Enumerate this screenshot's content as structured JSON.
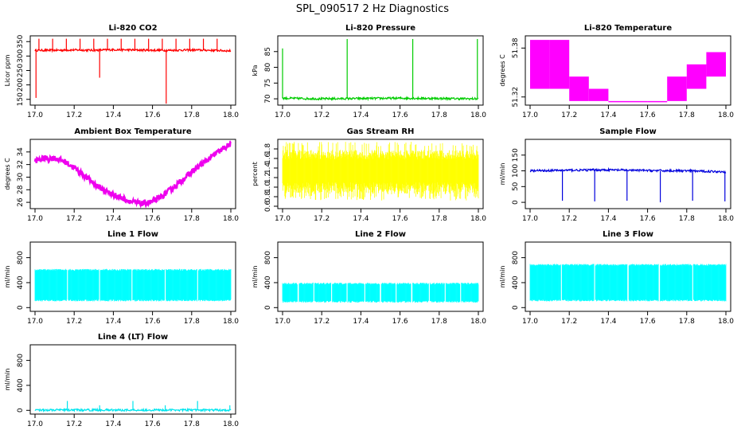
{
  "figure": {
    "title": "SPL_090517  2 Hz Diagnostics"
  },
  "chart_data": [
    {
      "type": "line",
      "title": "Li-820 CO2",
      "ylabel": "Licor ppm",
      "xlim": [
        17.0,
        18.0
      ],
      "ylim": [
        130,
        370
      ],
      "xticks": [
        "17.0",
        "17.2",
        "17.4",
        "17.6",
        "17.8",
        "18.0"
      ],
      "yticks": [
        150,
        200,
        250,
        300,
        350
      ],
      "ytick_labels": [
        "150",
        "200",
        "250",
        "300",
        "350"
      ],
      "color": "#ff0000",
      "x": [
        17.0,
        17.1,
        17.2,
        17.3,
        17.4,
        17.5,
        17.6,
        17.7,
        17.8,
        17.9,
        18.0
      ],
      "y": [
        320,
        320,
        321,
        320,
        322,
        321,
        320,
        320,
        321,
        320,
        318
      ],
      "spikes_down": [
        {
          "x": 17.005,
          "y": 155
        },
        {
          "x": 17.33,
          "y": 225
        },
        {
          "x": 17.67,
          "y": 135
        }
      ]
    },
    {
      "type": "line",
      "title": "Li-820 Pressure",
      "ylabel": "kPa",
      "xlim": [
        17.0,
        18.0
      ],
      "ylim": [
        68,
        90
      ],
      "xticks": [
        "17.0",
        "17.2",
        "17.4",
        "17.6",
        "17.8",
        "18.0"
      ],
      "yticks": [
        70,
        75,
        80,
        85
      ],
      "ytick_labels": [
        "70",
        "75",
        "80",
        "85"
      ],
      "color": "#00cc00",
      "x": [
        17.0,
        17.2,
        17.4,
        17.6,
        17.8,
        18.0
      ],
      "y": [
        70.2,
        70.0,
        70.1,
        70.2,
        70.1,
        70.0
      ],
      "spikes_up": [
        {
          "x": 17.0,
          "y": 86
        },
        {
          "x": 17.33,
          "y": 89
        },
        {
          "x": 17.665,
          "y": 89
        },
        {
          "x": 17.995,
          "y": 89
        }
      ]
    },
    {
      "type": "line",
      "title": "Li-820 Temperature",
      "ylabel": "degrees C",
      "xlim": [
        17.0,
        18.0
      ],
      "ylim": [
        51.31,
        51.395
      ],
      "xticks": [
        "17.0",
        "17.2",
        "17.4",
        "17.6",
        "17.8",
        "18.0"
      ],
      "yticks": [
        51.32,
        51.38
      ],
      "ytick_labels": [
        "51.32",
        "51.38"
      ],
      "color": "#ff00ff",
      "x": [
        17.0,
        17.1,
        17.2,
        17.3,
        17.4,
        17.5,
        17.6,
        17.7,
        17.8,
        17.9,
        18.0
      ],
      "y_low": [
        51.33,
        51.33,
        51.315,
        51.315,
        51.315,
        51.315,
        51.315,
        51.315,
        51.33,
        51.345,
        51.36
      ],
      "y_high": [
        51.39,
        51.39,
        51.345,
        51.33,
        51.315,
        51.315,
        51.315,
        51.345,
        51.36,
        51.375,
        51.39
      ]
    },
    {
      "type": "line",
      "title": "Ambient Box Temperature",
      "ylabel": "degrees C",
      "xlim": [
        17.0,
        18.0
      ],
      "ylim": [
        25,
        36
      ],
      "xticks": [
        "17.0",
        "17.2",
        "17.4",
        "17.6",
        "17.8",
        "18.0"
      ],
      "yticks": [
        26,
        28,
        30,
        32,
        34
      ],
      "ytick_labels": [
        "26",
        "28",
        "30",
        "32",
        "34"
      ],
      "color": "#ee00ee",
      "x": [
        17.0,
        17.05,
        17.1,
        17.15,
        17.2,
        17.25,
        17.3,
        17.35,
        17.4,
        17.45,
        17.5,
        17.55,
        17.6,
        17.65,
        17.7,
        17.75,
        17.8,
        17.85,
        17.9,
        17.95,
        18.0
      ],
      "y": [
        32.6,
        33.0,
        33.0,
        32.5,
        31.5,
        30.3,
        29.0,
        28.0,
        27.2,
        26.6,
        26.0,
        25.8,
        26.1,
        27.0,
        28.2,
        29.5,
        30.8,
        32.0,
        33.2,
        34.3,
        35.3
      ]
    },
    {
      "type": "line",
      "title": "Gas Stream RH",
      "ylabel": "percent",
      "xlim": [
        17.0,
        18.0
      ],
      "ylim": [
        0.55,
        2.0
      ],
      "xticks": [
        "17.0",
        "17.2",
        "17.4",
        "17.6",
        "17.8",
        "18.0"
      ],
      "yticks": [
        0.6,
        0.8,
        1.0,
        1.2,
        1.4,
        1.6,
        1.8
      ],
      "ytick_labels": [
        "0.6",
        "0.8",
        "1.0",
        "1.2",
        "1.4",
        "1.6",
        "1.8"
      ],
      "color": "#ffff00",
      "band_low": 0.85,
      "band_high": 1.78,
      "extreme_low": 0.72,
      "extreme_high": 1.95
    },
    {
      "type": "line",
      "title": "Sample Flow",
      "ylabel": "ml/min",
      "xlim": [
        17.0,
        18.0
      ],
      "ylim": [
        -20,
        200
      ],
      "xticks": [
        "17.0",
        "17.2",
        "17.4",
        "17.6",
        "17.8",
        "18.0"
      ],
      "yticks": [
        0,
        50,
        100,
        150
      ],
      "ytick_labels": [
        "0",
        "50",
        "100",
        "150"
      ],
      "color": "#0000dd",
      "x": [
        17.0,
        17.2,
        17.4,
        17.6,
        17.8,
        18.0
      ],
      "y": [
        100,
        102,
        103,
        101,
        100,
        97
      ],
      "spikes_down": [
        {
          "x": 17.165,
          "y": 5
        },
        {
          "x": 17.33,
          "y": 3
        },
        {
          "x": 17.495,
          "y": 5
        },
        {
          "x": 17.665,
          "y": 0
        },
        {
          "x": 17.83,
          "y": 5
        },
        {
          "x": 17.995,
          "y": 3
        }
      ]
    },
    {
      "type": "area",
      "title": "Line 1 Flow",
      "ylabel": "ml/min",
      "xlim": [
        17.0,
        18.0
      ],
      "ylim": [
        -60,
        1050
      ],
      "xticks": [
        "17.0",
        "17.2",
        "17.4",
        "17.6",
        "17.8",
        "18.0"
      ],
      "yticks": [
        0,
        400,
        800
      ],
      "ytick_labels": [
        "0",
        "400",
        "800"
      ],
      "color": "#00ffff",
      "band_low": 100,
      "band_high": 620,
      "gaps": [
        17.165,
        17.33,
        17.495,
        17.665,
        17.83
      ]
    },
    {
      "type": "area",
      "title": "Line 2 Flow",
      "ylabel": "ml/min",
      "xlim": [
        17.0,
        18.0
      ],
      "ylim": [
        -60,
        1050
      ],
      "xticks": [
        "17.0",
        "17.2",
        "17.4",
        "17.6",
        "17.8",
        "18.0"
      ],
      "yticks": [
        0,
        400,
        800
      ],
      "ytick_labels": [
        "0",
        "400",
        "800"
      ],
      "color": "#00ffff",
      "band_low": 80,
      "band_high": 400,
      "gaps": [
        17.08,
        17.16,
        17.25,
        17.33,
        17.42,
        17.5,
        17.58,
        17.66,
        17.75,
        17.83,
        17.91
      ]
    },
    {
      "type": "area",
      "title": "Line 3 Flow",
      "ylabel": "ml/min",
      "xlim": [
        17.0,
        18.0
      ],
      "ylim": [
        -60,
        1050
      ],
      "xticks": [
        "17.0",
        "17.2",
        "17.4",
        "17.6",
        "17.8",
        "18.0"
      ],
      "yticks": [
        0,
        400,
        800
      ],
      "ytick_labels": [
        "0",
        "400",
        "800"
      ],
      "color": "#00ffff",
      "band_low": 100,
      "band_high": 700,
      "gaps": [
        17.16,
        17.33,
        17.5,
        17.66,
        17.83
      ]
    },
    {
      "type": "line",
      "title": "Line 4 (LT) Flow",
      "ylabel": "ml/min",
      "xlim": [
        17.0,
        18.0
      ],
      "ylim": [
        -60,
        1050
      ],
      "xticks": [
        "17.0",
        "17.2",
        "17.4",
        "17.6",
        "17.8",
        "18.0"
      ],
      "yticks": [
        0,
        400,
        800
      ],
      "ytick_labels": [
        "0",
        "400",
        "800"
      ],
      "color": "#00e5ee",
      "x": [
        17.0,
        17.5,
        18.0
      ],
      "y": [
        5,
        5,
        5
      ],
      "spikes_up": [
        {
          "x": 17.165,
          "y": 150
        },
        {
          "x": 17.33,
          "y": 80
        },
        {
          "x": 17.5,
          "y": 150
        },
        {
          "x": 17.665,
          "y": 80
        },
        {
          "x": 17.83,
          "y": 150
        },
        {
          "x": 17.995,
          "y": 80
        }
      ]
    }
  ]
}
